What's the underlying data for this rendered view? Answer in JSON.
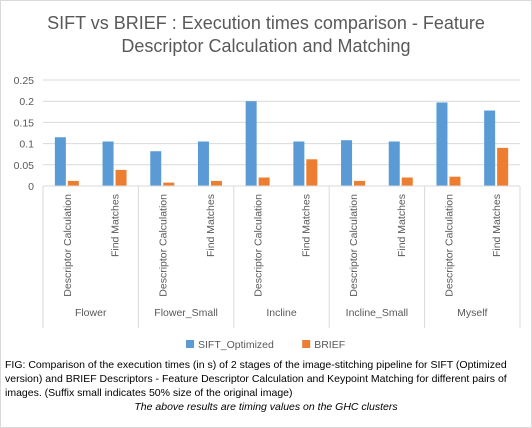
{
  "chart_data": {
    "type": "bar",
    "title_lines": [
      "SIFT vs BRIEF : Execution times comparison - Feature",
      "Descriptor Calculation and Matching"
    ],
    "groups": [
      "Flower",
      "Flower_Small",
      "Incline",
      "Incline_Small",
      "Myself"
    ],
    "categories": [
      "Descriptor Calculation",
      "Find Matches",
      "Descriptor Calculation",
      "Find Matches",
      "Descriptor Calculation",
      "Find Matches",
      "Descriptor Calculation",
      "Find Matches",
      "Descriptor Calculation",
      "Find Matches"
    ],
    "series": [
      {
        "name": "SIFT_Optimized",
        "color": "#5b9bd5",
        "values": [
          0.115,
          0.105,
          0.082,
          0.105,
          0.2,
          0.105,
          0.108,
          0.105,
          0.197,
          0.178
        ]
      },
      {
        "name": "BRIEF",
        "color": "#ed7d31",
        "values": [
          0.012,
          0.038,
          0.008,
          0.012,
          0.02,
          0.063,
          0.012,
          0.02,
          0.022,
          0.09
        ]
      }
    ],
    "ylim": [
      0,
      0.25
    ],
    "yticks": [
      "0",
      "0.05",
      "0.1",
      "0.15",
      "0.2",
      "0.25"
    ],
    "grid": true,
    "legend_position": "bottom"
  },
  "caption": {
    "text": "FIG: Comparison of the execution times (in s) of 2 stages of the image-stitching pipeline for SIFT (Optimized version) and BRIEF Descriptors - Feature Descriptor Calculation and Keypoint Matching for different pairs of images. (Suffix small indicates 50% size of the original image)",
    "note": "The above results are timing values on the GHC clusters"
  }
}
